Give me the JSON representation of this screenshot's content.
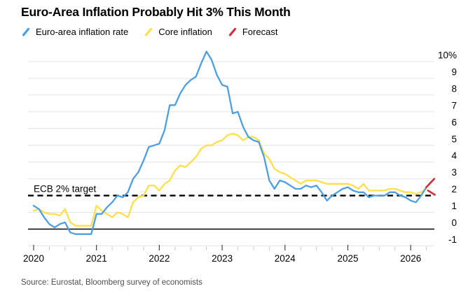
{
  "title": "Euro-Area Inflation Probably Hit 3% This Month",
  "legend": {
    "items": [
      {
        "label": "Euro-area inflation rate",
        "color": "#4D9FE3"
      },
      {
        "label": "Core inflation",
        "color": "#FFDF4A"
      },
      {
        "label": "Forecast",
        "color": "#CE323F"
      }
    ]
  },
  "annotation": {
    "target_label": "ECB 2% target",
    "target_value": 2
  },
  "source": "Source: Eurostat, Bloomberg survey of economists",
  "colors": {
    "grid": "#E4E4E4",
    "zero_line": "#000000",
    "target_line": "#000000",
    "tick_minor": "#C9C9C9",
    "tick_major": "#444444",
    "axis_label": "#000000"
  },
  "chart_data": {
    "type": "line",
    "title": "Euro-Area Inflation Probably Hit 3% This Month",
    "xlabel": "",
    "ylabel": "",
    "x_start": "2020-01",
    "frequency": "monthly",
    "ylim": [
      -1,
      10
    ],
    "grid": "horizontal",
    "legend_position": "top",
    "x_tick_years": [
      "2020",
      "2021",
      "2022",
      "2023",
      "2024",
      "2025",
      "2026"
    ],
    "y_ticks": [
      {
        "value": 10,
        "label": "10%"
      },
      {
        "value": 9,
        "label": "9"
      },
      {
        "value": 8,
        "label": "8"
      },
      {
        "value": 7,
        "label": "7"
      },
      {
        "value": 6,
        "label": "6"
      },
      {
        "value": 5,
        "label": "5"
      },
      {
        "value": 4,
        "label": "4"
      },
      {
        "value": 3,
        "label": "3"
      },
      {
        "value": 2,
        "label": "2"
      },
      {
        "value": 1,
        "label": "1"
      },
      {
        "value": 0,
        "label": "0"
      },
      {
        "value": -1,
        "label": "-1"
      }
    ],
    "target_line": {
      "label": "ECB 2% target",
      "value": 2,
      "style": "dashed"
    },
    "series": [
      {
        "name": "Euro-area inflation rate",
        "color": "#4D9FE3",
        "start_month_index": 0,
        "values": [
          1.4,
          1.2,
          0.7,
          0.3,
          0.1,
          0.3,
          0.4,
          -0.2,
          -0.3,
          -0.3,
          -0.3,
          -0.3,
          0.9,
          0.9,
          1.3,
          1.6,
          2.0,
          1.9,
          2.2,
          3.0,
          3.4,
          4.1,
          4.9,
          5.0,
          5.1,
          5.9,
          7.4,
          7.4,
          8.1,
          8.6,
          8.9,
          9.1,
          9.9,
          10.6,
          10.1,
          9.2,
          8.6,
          8.5,
          6.9,
          7.0,
          6.1,
          5.5,
          5.3,
          5.2,
          4.3,
          2.9,
          2.4,
          2.9,
          2.8,
          2.6,
          2.4,
          2.4,
          2.6,
          2.5,
          2.6,
          2.2,
          1.7,
          2.0,
          2.2,
          2.4,
          2.5,
          2.3,
          2.2,
          2.2,
          1.9,
          2.0,
          2.0,
          2.0,
          2.2,
          2.2,
          2.0,
          1.9,
          1.7,
          1.6,
          2.0,
          2.5
        ]
      },
      {
        "name": "Core inflation",
        "color": "#FFDF4A",
        "start_month_index": 0,
        "values": [
          1.1,
          1.2,
          1.0,
          0.9,
          0.9,
          0.8,
          1.2,
          0.4,
          0.2,
          0.2,
          0.2,
          0.2,
          1.4,
          1.1,
          0.9,
          0.7,
          1.0,
          0.9,
          0.7,
          1.6,
          1.9,
          2.0,
          2.6,
          2.6,
          2.3,
          2.7,
          2.9,
          3.5,
          3.8,
          3.7,
          4.0,
          4.3,
          4.8,
          5.0,
          5.0,
          5.2,
          5.3,
          5.6,
          5.7,
          5.6,
          5.3,
          5.5,
          5.5,
          5.3,
          4.5,
          4.2,
          3.6,
          3.4,
          3.3,
          3.1,
          2.9,
          2.7,
          2.9,
          2.9,
          2.9,
          2.8,
          2.7,
          2.7,
          2.7,
          2.7,
          2.7,
          2.6,
          2.4,
          2.7,
          2.3,
          2.3,
          2.3,
          2.3,
          2.4,
          2.4,
          2.3,
          2.2,
          2.2,
          2.1,
          2.2,
          2.4
        ]
      },
      {
        "name": "Forecast (headline)",
        "color": "#CE323F",
        "points": [
          [
            75,
            2.5
          ],
          [
            76.5,
            3.0
          ]
        ]
      },
      {
        "name": "Forecast (core)",
        "color": "#CE323F",
        "points": [
          [
            75.3,
            2.3
          ],
          [
            76.6,
            2.05
          ]
        ]
      }
    ]
  }
}
